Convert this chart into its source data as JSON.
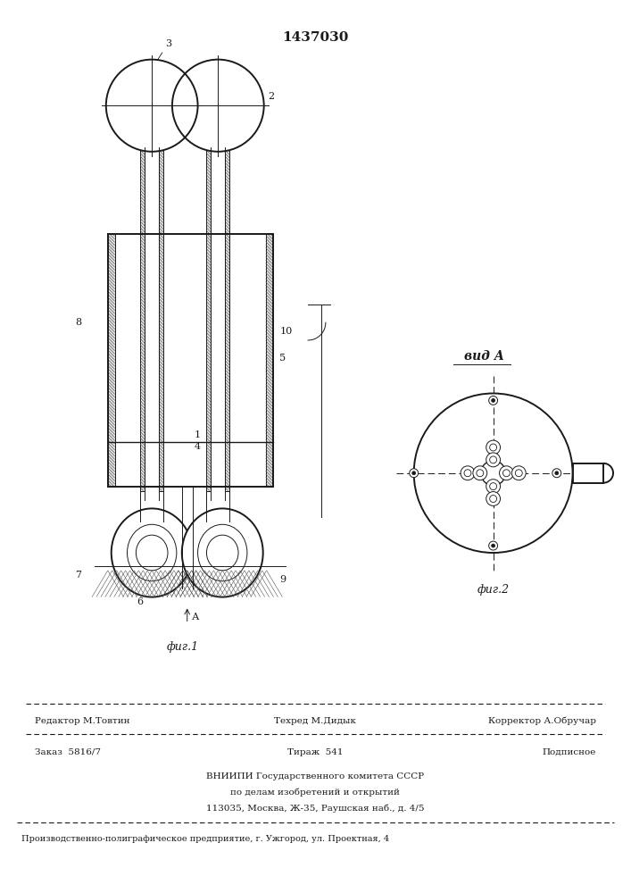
{
  "patent_number": "1437030",
  "bg_color": "#ffffff",
  "line_color": "#1a1a1a",
  "fig1_label": "фиг.1",
  "fig2_label": "фиг.2",
  "vid_a_label": "вид А",
  "footer_line1_left": "Редактор М.Товтин",
  "footer_line1_mid": "Техред М.Дидык",
  "footer_line1_right": "Корректор А.Обручар",
  "footer_line2_left": "Заказ  5816/7",
  "footer_line2_mid": "Тираж  541",
  "footer_line2_right": "Подписное",
  "footer_line3": "ВНИИПИ Государственного комитета СССР",
  "footer_line4": "по делам изобретений и открытий",
  "footer_line5": "113035, Москва, Ж-35, Раушская наб., д. 4/5",
  "footer_bottom": "Производственно-полиграфическое предприятие, г. Ужгород, ул. Проектная, 4"
}
